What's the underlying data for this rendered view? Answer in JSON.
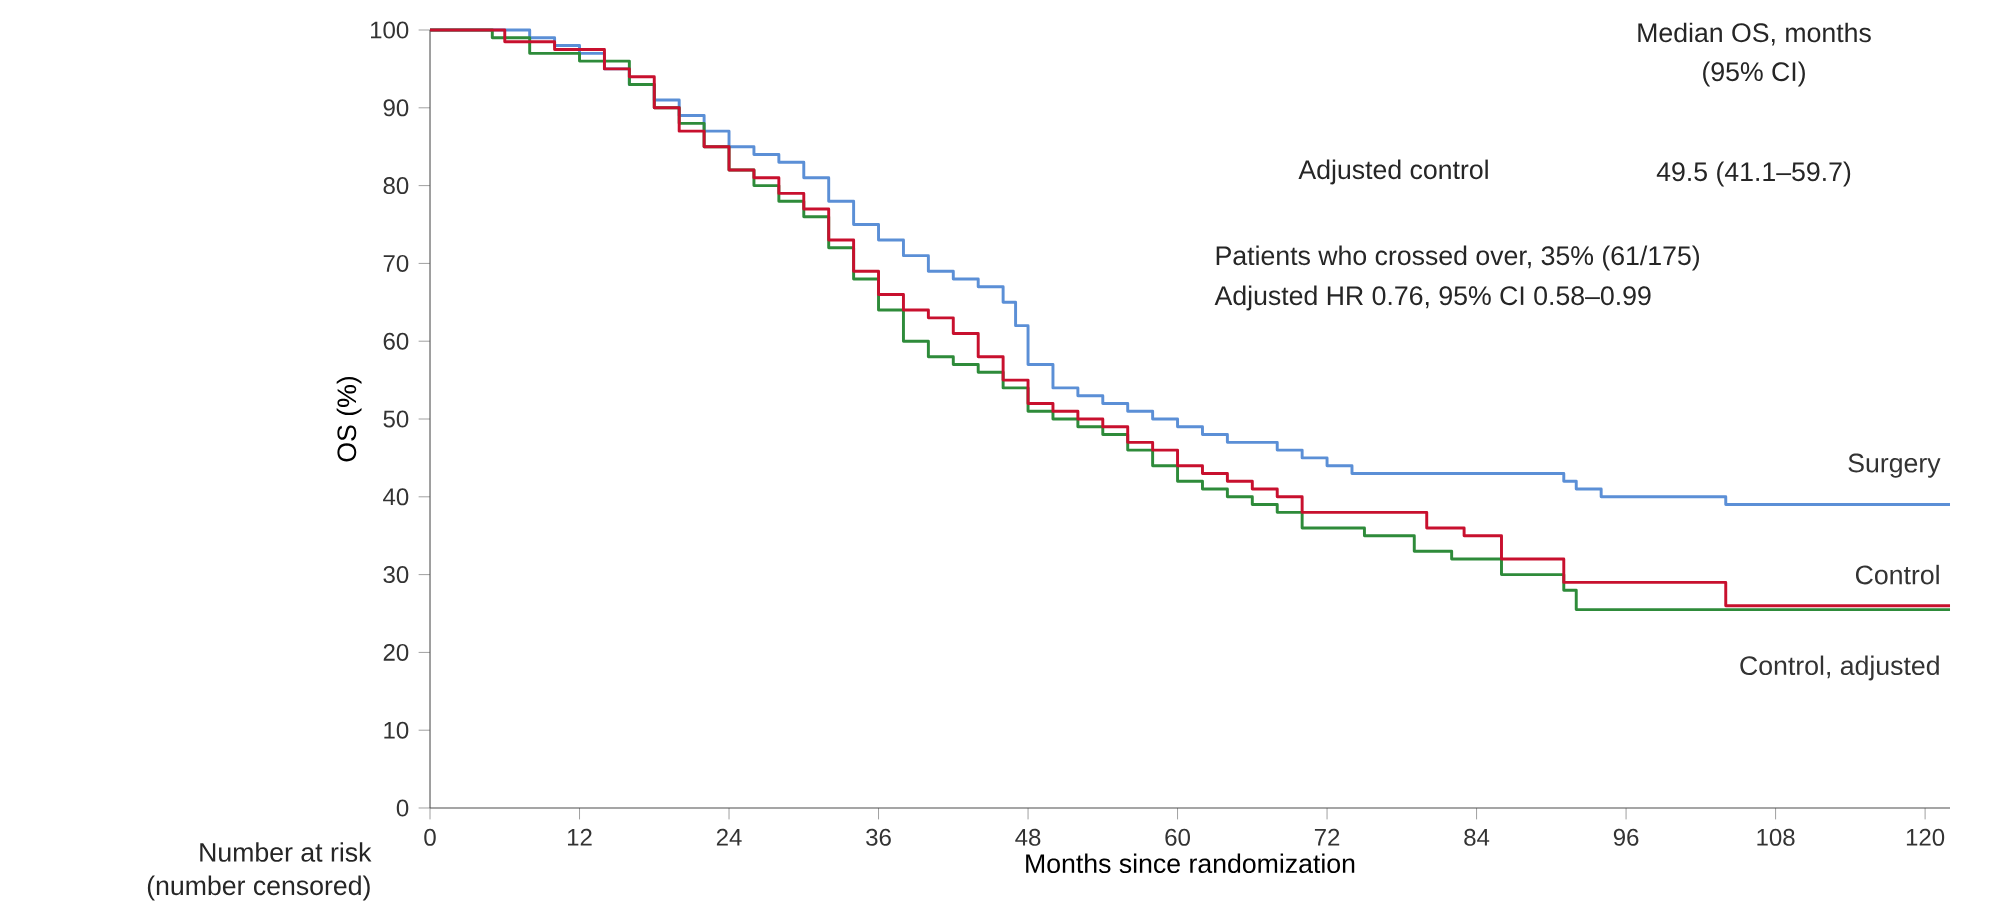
{
  "chart_data": {
    "type": "step",
    "xlabel": "Months since randomization",
    "ylabel": "OS (%)",
    "xlim": [
      0,
      122
    ],
    "ylim": [
      0,
      100
    ],
    "xticks": [
      0,
      12,
      24,
      36,
      48,
      60,
      72,
      84,
      96,
      108,
      120
    ],
    "yticks": [
      0,
      10,
      20,
      30,
      40,
      50,
      60,
      70,
      80,
      90,
      100
    ],
    "grid": false,
    "legend": false,
    "series": [
      {
        "name": "Surgery",
        "color": "#5b8fd6",
        "x": [
          0,
          6,
          8,
          10,
          12,
          14,
          16,
          18,
          20,
          22,
          24,
          26,
          28,
          30,
          32,
          34,
          36,
          38,
          40,
          42,
          44,
          46,
          47,
          48,
          50,
          52,
          54,
          56,
          58,
          60,
          62,
          64,
          66,
          68,
          70,
          72,
          74,
          91,
          92,
          94,
          104,
          122
        ],
        "values": [
          100,
          100,
          99,
          98,
          97,
          95,
          93,
          91,
          89,
          87,
          85,
          84,
          83,
          81,
          78,
          75,
          73,
          71,
          69,
          68,
          67,
          65,
          62,
          57,
          54,
          53,
          52,
          51,
          50,
          49,
          48,
          47,
          47,
          46,
          45,
          44,
          43,
          42,
          41,
          40,
          39,
          39
        ]
      },
      {
        "name": "Control",
        "color": "#c8102e",
        "x": [
          0,
          6,
          10,
          14,
          16,
          18,
          20,
          22,
          24,
          26,
          28,
          30,
          32,
          34,
          36,
          38,
          40,
          42,
          44,
          46,
          48,
          50,
          52,
          54,
          56,
          58,
          60,
          62,
          64,
          66,
          68,
          70,
          80,
          83,
          86,
          91,
          104,
          122
        ],
        "values": [
          100,
          98.5,
          97.5,
          95,
          94,
          90,
          87,
          85,
          82,
          81,
          79,
          77,
          73,
          69,
          66,
          64,
          63,
          61,
          58,
          55,
          52,
          51,
          50,
          49,
          47,
          46,
          44,
          43,
          42,
          41,
          40,
          38,
          36,
          35,
          32,
          29,
          26,
          26
        ]
      },
      {
        "name": "Control, adjusted",
        "color": "#2e8b3a",
        "x": [
          0,
          5,
          8,
          12,
          16,
          18,
          20,
          22,
          24,
          26,
          28,
          30,
          32,
          34,
          36,
          38,
          40,
          42,
          44,
          46,
          48,
          50,
          52,
          54,
          56,
          58,
          60,
          62,
          64,
          66,
          68,
          70,
          75,
          79,
          82,
          86,
          91,
          92,
          122
        ],
        "values": [
          100,
          99,
          97,
          96,
          93,
          90,
          88,
          85,
          82,
          80,
          78,
          76,
          72,
          68,
          64,
          60,
          58,
          57,
          56,
          54,
          51,
          50,
          49,
          48,
          46,
          44,
          42,
          41,
          40,
          39,
          38,
          36,
          35,
          33,
          32,
          30,
          28,
          25.5,
          25.5
        ]
      }
    ],
    "annotations": [
      "Median OS, months",
      "(95% CI)",
      "Adjusted control",
      "49.5 (41.1–59.7)",
      "Patients who crossed over, 35% (61/175)",
      "Adjusted HR 0.76, 95% CI 0.58–0.99",
      "Number at risk",
      "(number censored)"
    ]
  }
}
